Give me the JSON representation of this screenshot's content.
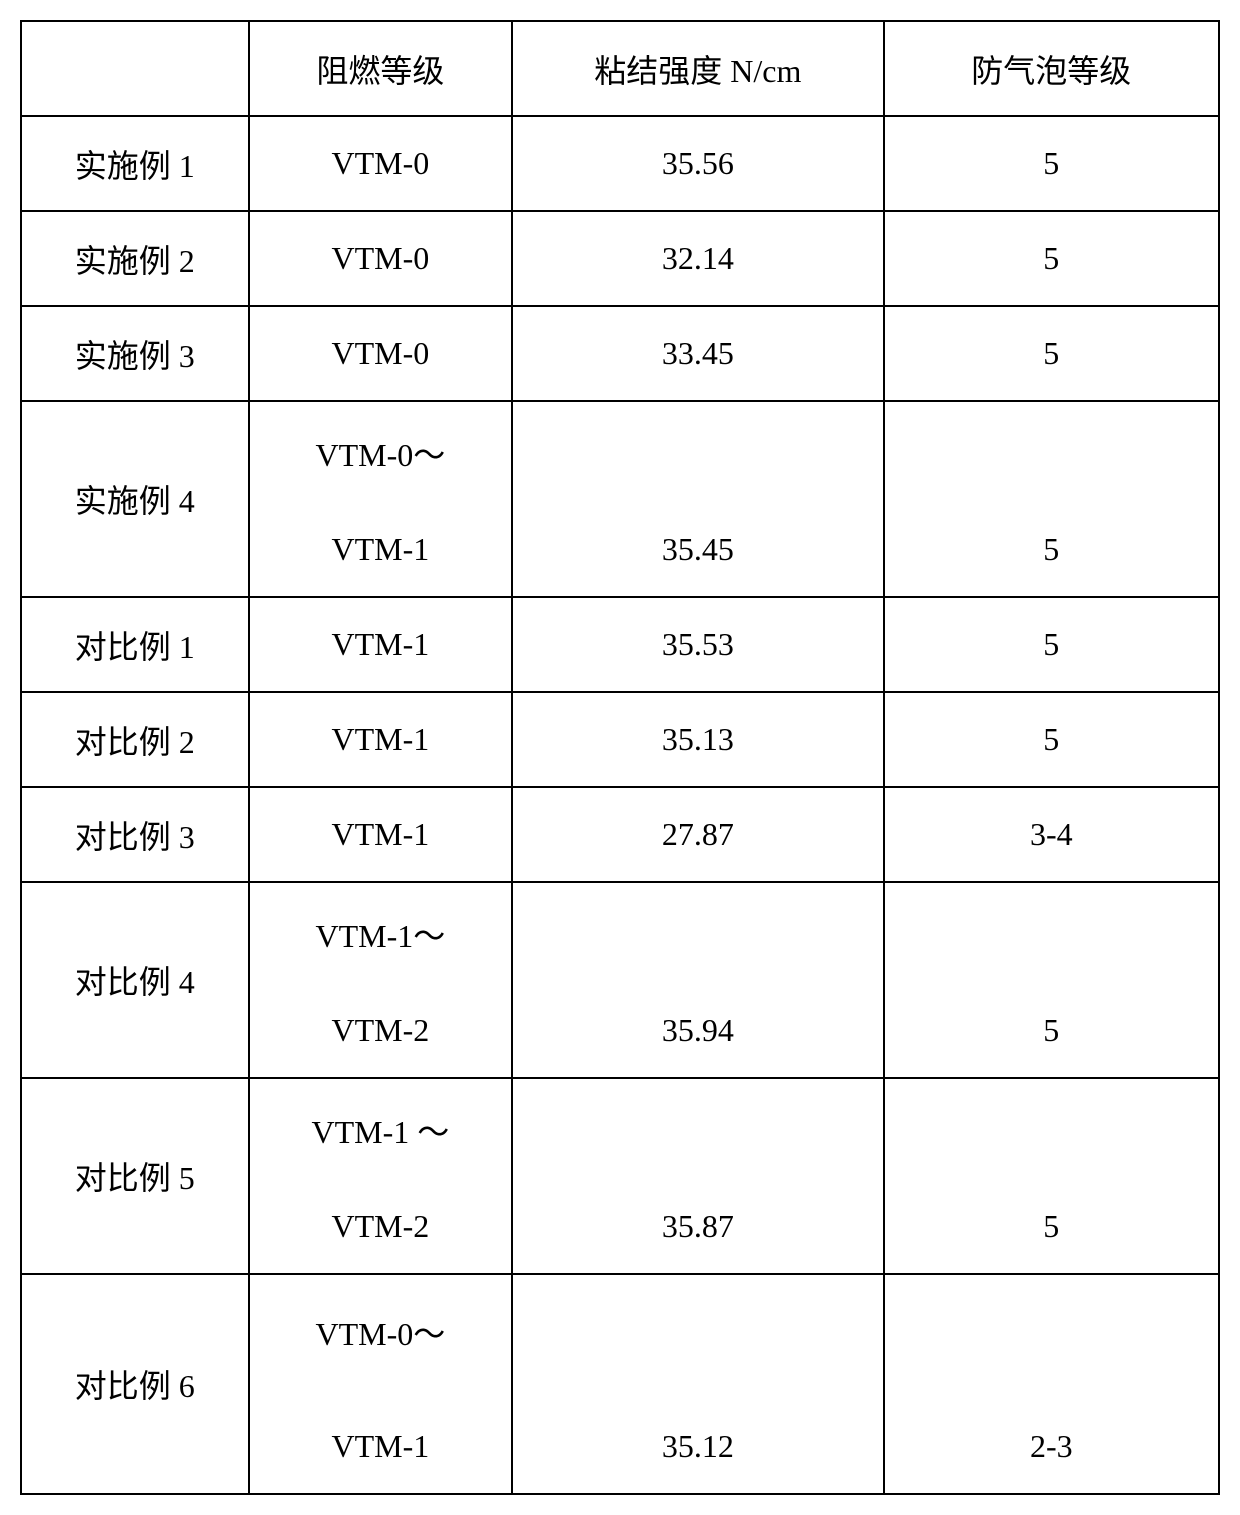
{
  "table": {
    "headers": [
      "",
      "阻燃等级",
      "粘结强度 N/cm",
      "防气泡等级"
    ],
    "rows": [
      {
        "label": "实施例 1",
        "flame": "VTM-0",
        "strength": "35.56",
        "bubble": "5",
        "type": "normal"
      },
      {
        "label": "实施例 2",
        "flame": "VTM-0",
        "strength": "32.14",
        "bubble": "5",
        "type": "normal"
      },
      {
        "label": "实施例 3",
        "flame": "VTM-0",
        "strength": "33.45",
        "bubble": "5",
        "type": "normal"
      },
      {
        "label": "实施例 4",
        "flame_top": "VTM-0～",
        "flame_bot": "VTM-1",
        "strength": "35.45",
        "bubble": "5",
        "type": "tall"
      },
      {
        "label": "对比例 1",
        "flame": "VTM-1",
        "strength": "35.53",
        "bubble": "5",
        "type": "normal"
      },
      {
        "label": "对比例 2",
        "flame": "VTM-1",
        "strength": "35.13",
        "bubble": "5",
        "type": "normal"
      },
      {
        "label": "对比例 3",
        "flame": "VTM-1",
        "strength": "27.87",
        "bubble": "3-4",
        "type": "normal"
      },
      {
        "label": "对比例 4",
        "flame_top": "VTM-1～",
        "flame_bot": "VTM-2",
        "strength": "35.94",
        "bubble": "5",
        "type": "tall"
      },
      {
        "label": "对比例 5",
        "flame_top": "VTM-1 ～",
        "flame_bot": "VTM-2",
        "strength": "35.87",
        "bubble": "5",
        "type": "tall"
      },
      {
        "label": "对比例 6",
        "flame_top": "VTM-0～",
        "flame_bot": "VTM-1",
        "strength": "35.12",
        "bubble": "2-3",
        "type": "tall2"
      }
    ],
    "border_color": "#000000",
    "background_color": "#ffffff",
    "text_color": "#000000",
    "font_size": 32
  }
}
